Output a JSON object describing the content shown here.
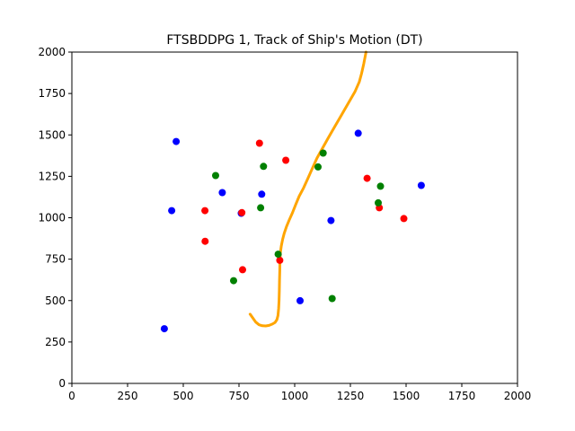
{
  "chart_data": {
    "type": "scatter",
    "title": "FTSBDDPG 1, Track of Ship's Motion (DT)",
    "xlabel": "",
    "ylabel": "",
    "xlim": [
      0,
      2000
    ],
    "ylim": [
      0,
      2000
    ],
    "x_ticks": [
      0,
      250,
      500,
      750,
      1000,
      1250,
      1500,
      1750,
      2000
    ],
    "y_ticks": [
      0,
      250,
      500,
      750,
      1000,
      1250,
      1500,
      1750,
      2000
    ],
    "grid": false,
    "legend": "none",
    "series": [
      {
        "kind": "line",
        "color": "#ffa500",
        "points": [
          [
            800,
            418
          ],
          [
            812,
            395
          ],
          [
            825,
            370
          ],
          [
            840,
            354
          ],
          [
            855,
            348
          ],
          [
            870,
            347
          ],
          [
            885,
            350
          ],
          [
            900,
            358
          ],
          [
            912,
            368
          ],
          [
            920,
            385
          ],
          [
            925,
            410
          ],
          [
            928,
            450
          ],
          [
            930,
            500
          ],
          [
            931,
            560
          ],
          [
            932,
            620
          ],
          [
            933,
            680
          ],
          [
            934,
            740
          ],
          [
            936,
            790
          ],
          [
            940,
            830
          ],
          [
            946,
            870
          ],
          [
            953,
            905
          ],
          [
            963,
            945
          ],
          [
            975,
            985
          ],
          [
            990,
            1030
          ],
          [
            1005,
            1080
          ],
          [
            1020,
            1130
          ],
          [
            1040,
            1180
          ],
          [
            1060,
            1240
          ],
          [
            1080,
            1300
          ],
          [
            1100,
            1360
          ],
          [
            1125,
            1420
          ],
          [
            1150,
            1480
          ],
          [
            1180,
            1550
          ],
          [
            1210,
            1620
          ],
          [
            1240,
            1690
          ],
          [
            1270,
            1760
          ],
          [
            1290,
            1820
          ],
          [
            1300,
            1870
          ],
          [
            1310,
            1930
          ],
          [
            1320,
            2000
          ]
        ]
      },
      {
        "kind": "scatter",
        "color": "#0000ff",
        "points": [
          [
            468,
            1460
          ],
          [
            1285,
            1510
          ],
          [
            1568,
            1195
          ],
          [
            675,
            1152
          ],
          [
            852,
            1142
          ],
          [
            448,
            1043
          ],
          [
            760,
            1027
          ],
          [
            1163,
            983
          ],
          [
            1024,
            499
          ],
          [
            415,
            330
          ]
        ]
      },
      {
        "kind": "scatter",
        "color": "#ff0000",
        "points": [
          [
            842,
            1450
          ],
          [
            960,
            1347
          ],
          [
            1325,
            1238
          ],
          [
            597,
            1043
          ],
          [
            763,
            1031
          ],
          [
            1380,
            1060
          ],
          [
            1490,
            995
          ],
          [
            598,
            858
          ],
          [
            933,
            743
          ],
          [
            766,
            686
          ]
        ]
      },
      {
        "kind": "scatter",
        "color": "#008000",
        "points": [
          [
            1128,
            1390
          ],
          [
            860,
            1310
          ],
          [
            1105,
            1307
          ],
          [
            645,
            1255
          ],
          [
            1385,
            1190
          ],
          [
            1375,
            1090
          ],
          [
            847,
            1060
          ],
          [
            926,
            780
          ],
          [
            726,
            620
          ],
          [
            1168,
            512
          ]
        ]
      }
    ]
  }
}
